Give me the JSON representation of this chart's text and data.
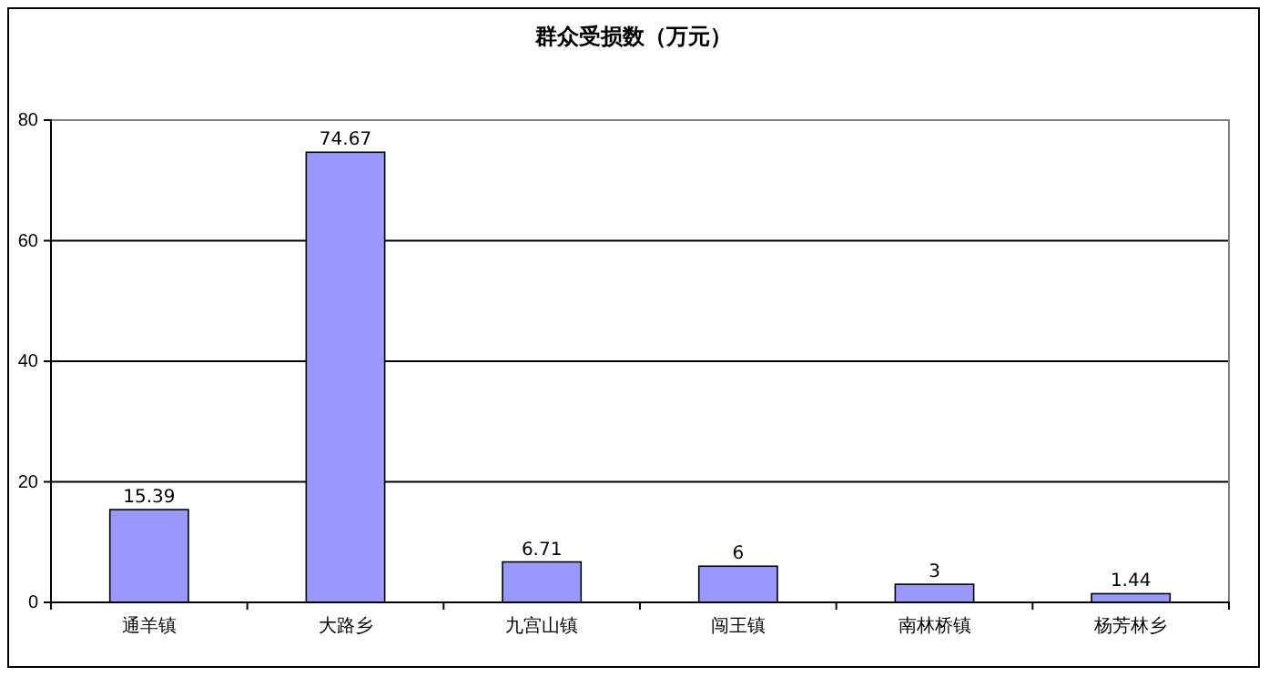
{
  "chart_data": {
    "type": "bar",
    "title": "群众受损数（万元）",
    "categories": [
      "通羊镇",
      "大路乡",
      "九宫山镇",
      "闯王镇",
      "南林桥镇",
      "杨芳林乡"
    ],
    "values": [
      15.39,
      74.67,
      6.71,
      6,
      3,
      1.44
    ],
    "color": "#9999ff",
    "ylim": [
      0,
      80
    ],
    "yticks": [
      0,
      20,
      40,
      60,
      80
    ],
    "grid": "y",
    "data_labels": true
  }
}
